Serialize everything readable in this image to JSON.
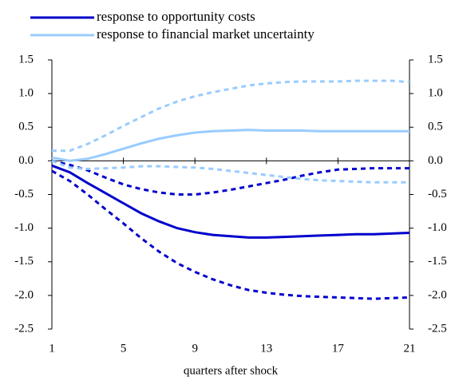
{
  "chart_data": {
    "type": "line",
    "x_label": "quarters after shock",
    "x": [
      1,
      2,
      3,
      4,
      5,
      6,
      7,
      8,
      9,
      10,
      11,
      12,
      13,
      14,
      15,
      16,
      17,
      18,
      19,
      20,
      21
    ],
    "xlim": [
      1,
      21
    ],
    "xticks": [
      1,
      5,
      9,
      13,
      17,
      21
    ],
    "ylim": [
      -2.5,
      1.5
    ],
    "yticks": [
      1.5,
      {
        "value": 1,
        "label": "1.0"
      },
      0.5,
      {
        "value": 0,
        "label": "0.0"
      },
      -0.5,
      {
        "value": -1,
        "label": "-1.0"
      },
      -1.5,
      {
        "value": -2,
        "label": "-2.0"
      },
      -2.5
    ],
    "y2lim": [
      -2.5,
      1.5
    ],
    "y2ticks": [
      1.5,
      {
        "value": 1,
        "label": "1.0"
      },
      0.5,
      {
        "value": 0,
        "label": "0.0"
      },
      -0.5,
      {
        "value": -1,
        "label": "-1.0"
      },
      -1.5,
      {
        "value": -2,
        "label": "-2.0"
      },
      -2.5
    ],
    "series": [
      {
        "name": "response to opportunity costs",
        "color": "#0000cc",
        "dashed": false,
        "values": [
          -0.07,
          -0.17,
          -0.33,
          -0.48,
          -0.63,
          -0.78,
          -0.9,
          -1.0,
          -1.06,
          -1.1,
          -1.12,
          -1.14,
          -1.14,
          -1.13,
          -1.12,
          -1.11,
          -1.1,
          -1.09,
          -1.09,
          -1.08,
          -1.07
        ]
      },
      {
        "name": "response to financial market uncertainty",
        "color": "#99ccff",
        "dashed": false,
        "values": [
          0.05,
          0.0,
          0.03,
          0.1,
          0.18,
          0.26,
          0.33,
          0.38,
          0.42,
          0.44,
          0.45,
          0.46,
          0.45,
          0.45,
          0.45,
          0.44,
          0.44,
          0.44,
          0.44,
          0.44,
          0.44
        ]
      },
      {
        "color": "#0000cc",
        "dashed": true,
        "values": [
          0.0,
          -0.06,
          -0.14,
          -0.25,
          -0.35,
          -0.42,
          -0.47,
          -0.5,
          -0.5,
          -0.47,
          -0.43,
          -0.38,
          -0.33,
          -0.28,
          -0.22,
          -0.17,
          -0.13,
          -0.12,
          -0.11,
          -0.11,
          -0.11
        ]
      },
      {
        "color": "#0000cc",
        "dashed": true,
        "values": [
          -0.15,
          -0.3,
          -0.5,
          -0.72,
          -0.93,
          -1.15,
          -1.35,
          -1.52,
          -1.65,
          -1.76,
          -1.85,
          -1.92,
          -1.96,
          -1.99,
          -2.01,
          -2.02,
          -2.03,
          -2.04,
          -2.05,
          -2.04,
          -2.03
        ]
      },
      {
        "color": "#99ccff",
        "dashed": true,
        "values": [
          0.15,
          0.15,
          0.25,
          0.38,
          0.52,
          0.65,
          0.78,
          0.88,
          0.96,
          1.02,
          1.07,
          1.12,
          1.15,
          1.17,
          1.18,
          1.18,
          1.18,
          1.19,
          1.19,
          1.19,
          1.17
        ]
      },
      {
        "color": "#99ccff",
        "dashed": true,
        "values": [
          0.0,
          -0.1,
          -0.12,
          -0.11,
          -0.1,
          -0.08,
          -0.08,
          -0.09,
          -0.1,
          -0.12,
          -0.15,
          -0.18,
          -0.21,
          -0.24,
          -0.27,
          -0.29,
          -0.3,
          -0.31,
          -0.32,
          -0.32,
          -0.32
        ]
      }
    ]
  }
}
